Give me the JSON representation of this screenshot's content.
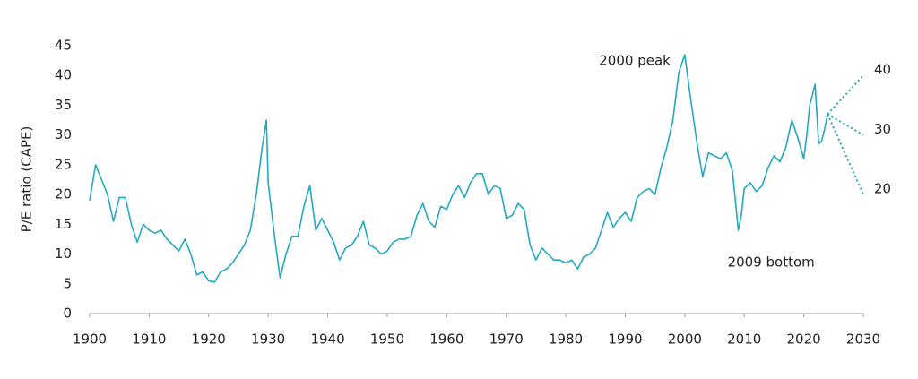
{
  "chart_data": {
    "type": "line",
    "y_label": "P/E ratio (CAPE)",
    "x": [
      1900,
      1901,
      1902,
      1903,
      1904,
      1905,
      1906,
      1907,
      1908,
      1909,
      1910,
      1911,
      1912,
      1913,
      1914,
      1915,
      1916,
      1917,
      1918,
      1919,
      1920,
      1921,
      1922,
      1923,
      1924,
      1925,
      1926,
      1927,
      1928,
      1929,
      1929.7,
      1930,
      1931,
      1932,
      1933,
      1934,
      1935,
      1936,
      1937,
      1938,
      1939,
      1940,
      1941,
      1942,
      1943,
      1944,
      1945,
      1946,
      1947,
      1948,
      1949,
      1950,
      1951,
      1952,
      1953,
      1954,
      1955,
      1956,
      1957,
      1958,
      1959,
      1960,
      1961,
      1962,
      1963,
      1964,
      1965,
      1966,
      1967,
      1968,
      1969,
      1970,
      1971,
      1972,
      1973,
      1974,
      1975,
      1976,
      1977,
      1978,
      1979,
      1980,
      1981,
      1982,
      1983,
      1984,
      1985,
      1986,
      1987,
      1988,
      1989,
      1990,
      1991,
      1992,
      1993,
      1994,
      1995,
      1996,
      1997,
      1998,
      1999,
      2000,
      2001,
      2002,
      2003,
      2004,
      2005,
      2006,
      2007,
      2008,
      2009,
      2009.5,
      2010,
      2011,
      2012,
      2013,
      2014,
      2015,
      2016,
      2017,
      2018,
      2019,
      2020,
      2020.5,
      2021,
      2021.9,
      2022.5,
      2023,
      2023.5,
      2024
    ],
    "series": [
      {
        "color": "#22a8bf",
        "values": [
          19,
          25,
          22.5,
          20,
          15.5,
          19.5,
          19.5,
          15,
          12,
          15,
          14,
          13.5,
          14,
          12.5,
          11.5,
          10.5,
          12.5,
          10,
          6.5,
          7,
          5.5,
          5.3,
          7,
          7.5,
          8.5,
          10,
          11.5,
          14,
          20,
          28,
          32.5,
          22,
          13.5,
          6,
          10,
          13,
          13,
          18,
          21.5,
          14,
          16,
          14,
          12,
          9,
          11,
          11.5,
          13,
          15.5,
          11.5,
          11,
          10,
          10.5,
          12,
          12.5,
          12.5,
          13,
          16.5,
          18.5,
          15.5,
          14.5,
          18,
          17.5,
          20,
          21.5,
          19.5,
          22,
          23.5,
          23.5,
          20,
          21.5,
          21,
          16,
          16.5,
          18.5,
          17.5,
          11.5,
          9,
          11,
          10,
          9,
          9,
          8.5,
          9,
          7.5,
          9.5,
          10,
          11,
          14,
          17,
          14.5,
          16,
          17,
          15.5,
          19.5,
          20.5,
          21,
          20,
          24.5,
          28,
          32.5,
          40.5,
          43.5,
          36,
          29,
          23,
          27,
          26.5,
          26,
          27,
          24,
          14,
          16.5,
          21,
          22,
          20.5,
          21.5,
          24.5,
          26.5,
          25.5,
          28,
          32.5,
          29.5,
          26,
          30,
          35,
          38.5,
          28.5,
          29,
          31,
          33.5
        ]
      }
    ],
    "projections": [
      {
        "x": [
          2024,
          2030
        ],
        "values": [
          33.5,
          40
        ]
      },
      {
        "x": [
          2024,
          2030
        ],
        "values": [
          33.5,
          30
        ]
      },
      {
        "x": [
          2024,
          2030
        ],
        "values": [
          33.5,
          20
        ]
      }
    ],
    "annotations": [
      {
        "text": "2000 peak",
        "x": 2000,
        "y": 43.5
      },
      {
        "text": "2009 bottom",
        "x": 2009,
        "y": 14
      }
    ],
    "xlim": [
      1900,
      2030
    ],
    "xticks": [
      1900,
      1910,
      1920,
      1930,
      1940,
      1950,
      1960,
      1970,
      1980,
      1990,
      2000,
      2010,
      2020,
      2030
    ],
    "ylim": [
      0,
      45
    ],
    "yticks": [
      0,
      5,
      10,
      15,
      20,
      25,
      30,
      35,
      40,
      45
    ],
    "grid": false
  }
}
